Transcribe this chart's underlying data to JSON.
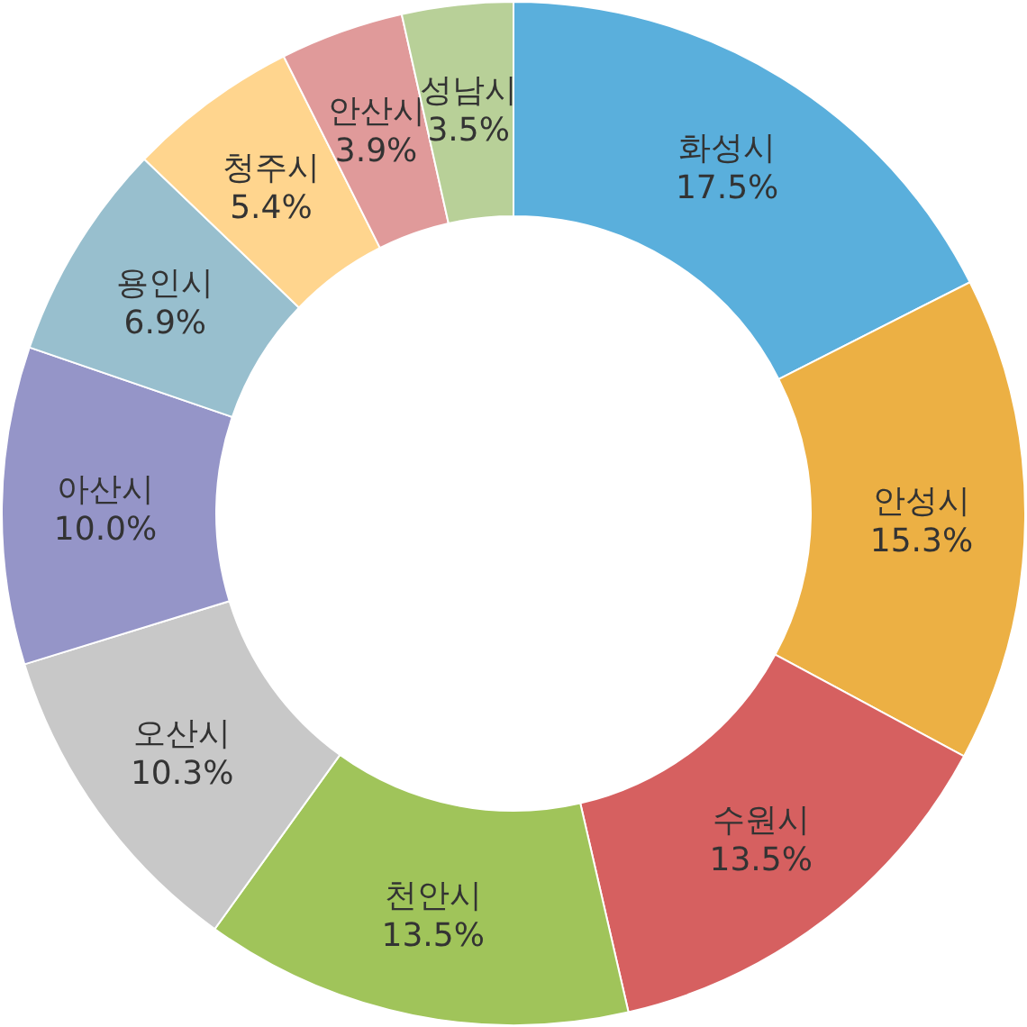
{
  "chart_data": {
    "type": "donut",
    "categories": [
      "화성시",
      "안성시",
      "수원시",
      "천안시",
      "오산시",
      "아산시",
      "용인시",
      "청주시",
      "안산시",
      "성남시"
    ],
    "values": [
      17.5,
      15.3,
      13.5,
      13.5,
      10.3,
      10.0,
      6.9,
      5.4,
      3.9,
      3.5
    ],
    "value_labels": [
      "17.5%",
      "15.3%",
      "13.5%",
      "13.5%",
      "10.3%",
      "10.0%",
      "6.9%",
      "5.4%",
      "3.9%",
      "3.5%"
    ],
    "colors": [
      "#5aafdc",
      "#ecb044",
      "#d66060",
      "#a0c45a",
      "#c8c8c8",
      "#9595c8",
      "#98bfce",
      "#ffd58e",
      "#e09a9a",
      "#b8d098"
    ]
  }
}
